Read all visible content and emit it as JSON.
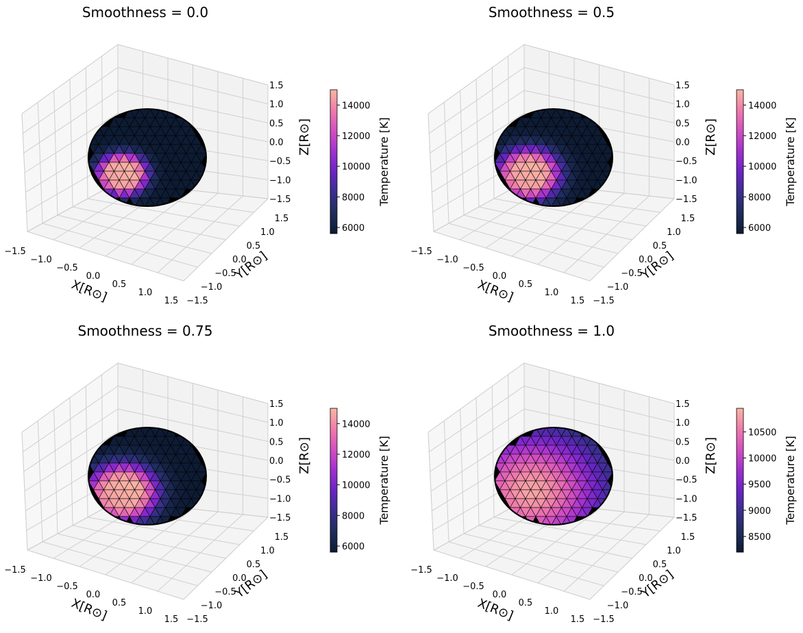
{
  "colormap": [
    "#0d1b33",
    "#1f2d5c",
    "#3a2f8f",
    "#6a24c4",
    "#a030cf",
    "#d44fc0",
    "#ef7bab",
    "#f9b6a3"
  ],
  "chart_data": [
    {
      "type": "3d-surface",
      "title": "Smoothness = 0.0",
      "xlabel": "X[R⊙]",
      "ylabel": "Y[R⊙]",
      "zlabel": "Z[R⊙]",
      "xlim": [
        -1.5,
        1.5
      ],
      "ylim": [
        -1.5,
        1.5
      ],
      "zlim": [
        -1.5,
        1.5
      ],
      "xticks": [
        "−1.5",
        "−1.0",
        "−0.5",
        "0.0",
        "0.5",
        "1.0",
        "1.5"
      ],
      "yticks": [
        "−1.5",
        "−1.0",
        "−0.5",
        "0.0",
        "0.5",
        "1.0",
        "1.5"
      ],
      "zticks": [
        "1.5",
        "1.0",
        "0.5",
        "0.0",
        "−0.5",
        "−1.0",
        "−1.5"
      ],
      "smoothness": 0.0,
      "base_temperature": 5600,
      "spot_temperature": 15000,
      "colorbar": {
        "label": "Temperature [K]",
        "min": 5600,
        "max": 15000,
        "ticks": [
          "6000",
          "8000",
          "10000",
          "12000",
          "14000"
        ]
      }
    },
    {
      "type": "3d-surface",
      "title": "Smoothness = 0.5",
      "xlabel": "X[R⊙]",
      "ylabel": "Y[R⊙]",
      "zlabel": "Z[R⊙]",
      "xlim": [
        -1.5,
        1.5
      ],
      "ylim": [
        -1.5,
        1.5
      ],
      "zlim": [
        -1.5,
        1.5
      ],
      "xticks": [
        "−1.5",
        "−1.0",
        "−0.5",
        "0.0",
        "0.5",
        "1.0",
        "1.5"
      ],
      "yticks": [
        "−1.5",
        "−1.0",
        "−0.5",
        "0.0",
        "0.5",
        "1.0",
        "1.5"
      ],
      "zticks": [
        "1.5",
        "1.0",
        "0.5",
        "0.0",
        "−0.5",
        "−1.0",
        "−1.5"
      ],
      "smoothness": 0.5,
      "base_temperature": 5600,
      "spot_temperature": 15000,
      "colorbar": {
        "label": "Temperature [K]",
        "min": 5600,
        "max": 15000,
        "ticks": [
          "6000",
          "8000",
          "10000",
          "12000",
          "14000"
        ]
      }
    },
    {
      "type": "3d-surface",
      "title": "Smoothness = 0.75",
      "xlabel": "X[R⊙]",
      "ylabel": "Y[R⊙]",
      "zlabel": "Z[R⊙]",
      "xlim": [
        -1.5,
        1.5
      ],
      "ylim": [
        -1.5,
        1.5
      ],
      "zlim": [
        -1.5,
        1.5
      ],
      "xticks": [
        "−1.5",
        "−1.0",
        "−0.5",
        "0.0",
        "0.5",
        "1.0",
        "1.5"
      ],
      "yticks": [
        "−1.5",
        "−1.0",
        "−0.5",
        "0.0",
        "0.5",
        "1.0",
        "1.5"
      ],
      "zticks": [
        "1.5",
        "1.0",
        "0.5",
        "0.0",
        "−0.5",
        "−1.0",
        "−1.5"
      ],
      "smoothness": 0.75,
      "base_temperature": 5600,
      "spot_temperature": 15000,
      "colorbar": {
        "label": "Temperature [K]",
        "min": 5600,
        "max": 15000,
        "ticks": [
          "6000",
          "8000",
          "10000",
          "12000",
          "14000"
        ]
      }
    },
    {
      "type": "3d-surface",
      "title": "Smoothness = 1.0",
      "xlabel": "X[R⊙]",
      "ylabel": "Y[R⊙]",
      "zlabel": "Z[R⊙]",
      "xlim": [
        -1.5,
        1.5
      ],
      "ylim": [
        -1.5,
        1.5
      ],
      "zlim": [
        -1.5,
        1.5
      ],
      "xticks": [
        "−1.5",
        "−1.0",
        "−0.5",
        "0.0",
        "0.5",
        "1.0",
        "1.5"
      ],
      "yticks": [
        "−1.5",
        "−1.0",
        "−0.5",
        "0.0",
        "0.5",
        "1.0",
        "1.5"
      ],
      "zticks": [
        "1.5",
        "1.0",
        "0.5",
        "0.0",
        "−0.5",
        "−1.0",
        "−1.5"
      ],
      "smoothness": 1.0,
      "base_temperature": 8200,
      "spot_temperature": 10900,
      "colorbar": {
        "label": "Temperature [K]",
        "min": 8200,
        "max": 10950,
        "ticks": [
          "8500",
          "9000",
          "9500",
          "10000",
          "10500"
        ]
      }
    }
  ]
}
